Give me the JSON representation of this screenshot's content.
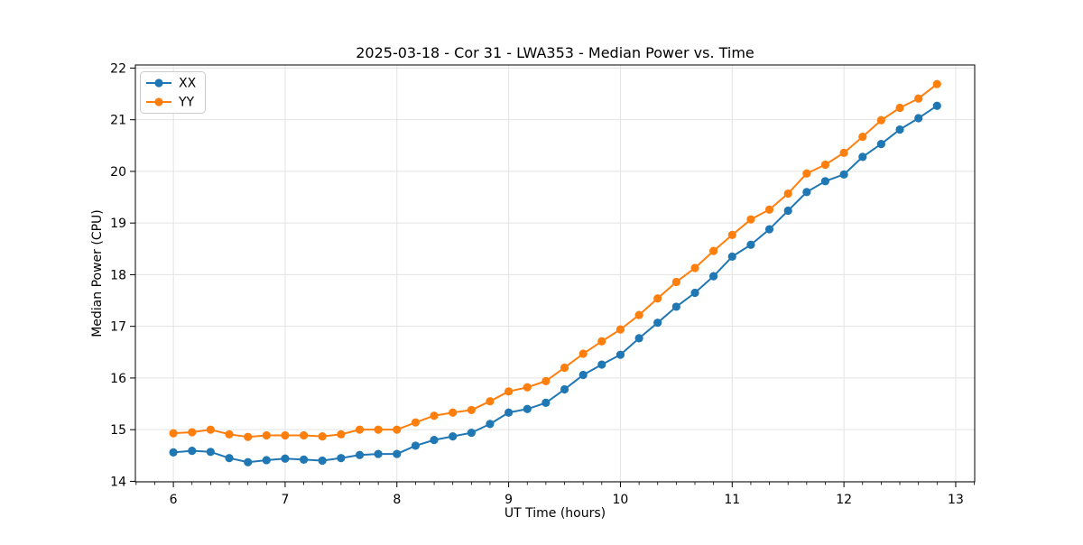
{
  "figure": {
    "title": "2025-03-18 - Cor 31 - LWA353 - Median Power vs. Time",
    "xlabel": "UT Time (hours)",
    "ylabel": "Median Power (CPU)"
  },
  "chart_data": {
    "type": "line",
    "title": "2025-03-18 - Cor 31 - LWA353 - Median Power vs. Time",
    "xlabel": "UT Time (hours)",
    "ylabel": "Median Power (CPU)",
    "xlim": [
      5.66,
      13.17
    ],
    "ylim": [
      13.99,
      22.06
    ],
    "xticks": [
      6,
      7,
      8,
      9,
      10,
      11,
      12,
      13
    ],
    "yticks": [
      14,
      15,
      16,
      17,
      18,
      19,
      20,
      21,
      22
    ],
    "x_minor_tick_step": 0.16667,
    "grid": true,
    "grid_color": "#e3e3e3",
    "legend_position": "upper-left",
    "x": [
      6.0,
      6.167,
      6.333,
      6.5,
      6.667,
      6.833,
      7.0,
      7.167,
      7.333,
      7.5,
      7.667,
      7.833,
      8.0,
      8.167,
      8.333,
      8.5,
      8.667,
      8.833,
      9.0,
      9.167,
      9.333,
      9.5,
      9.667,
      9.833,
      10.0,
      10.167,
      10.333,
      10.5,
      10.667,
      10.833,
      11.0,
      11.167,
      11.333,
      11.5,
      11.667,
      11.833,
      12.0,
      12.167,
      12.333,
      12.5,
      12.667,
      12.833
    ],
    "series": [
      {
        "name": "XX",
        "color": "#1f77b4",
        "marker": "circle",
        "values": [
          14.56,
          14.59,
          14.57,
          14.45,
          14.37,
          14.41,
          14.44,
          14.42,
          14.4,
          14.45,
          14.51,
          14.53,
          14.53,
          14.69,
          14.8,
          14.87,
          14.94,
          15.11,
          15.33,
          15.4,
          15.52,
          15.78,
          16.06,
          16.26,
          16.45,
          16.77,
          17.07,
          17.38,
          17.65,
          17.97,
          18.35,
          18.58,
          18.88,
          19.24,
          19.6,
          19.81,
          19.94,
          20.28,
          20.53,
          20.81,
          21.03,
          21.27
        ]
      },
      {
        "name": "YY",
        "color": "#ff7f0e",
        "marker": "circle",
        "values": [
          14.93,
          14.95,
          15.0,
          14.91,
          14.86,
          14.89,
          14.89,
          14.89,
          14.87,
          14.91,
          15.0,
          15.0,
          15.0,
          15.14,
          15.27,
          15.33,
          15.38,
          15.55,
          15.74,
          15.82,
          15.94,
          16.2,
          16.47,
          16.71,
          16.94,
          17.22,
          17.54,
          17.86,
          18.13,
          18.46,
          18.77,
          19.07,
          19.26,
          19.57,
          19.96,
          20.13,
          20.36,
          20.67,
          20.99,
          21.23,
          21.41,
          21.69
        ]
      }
    ]
  }
}
